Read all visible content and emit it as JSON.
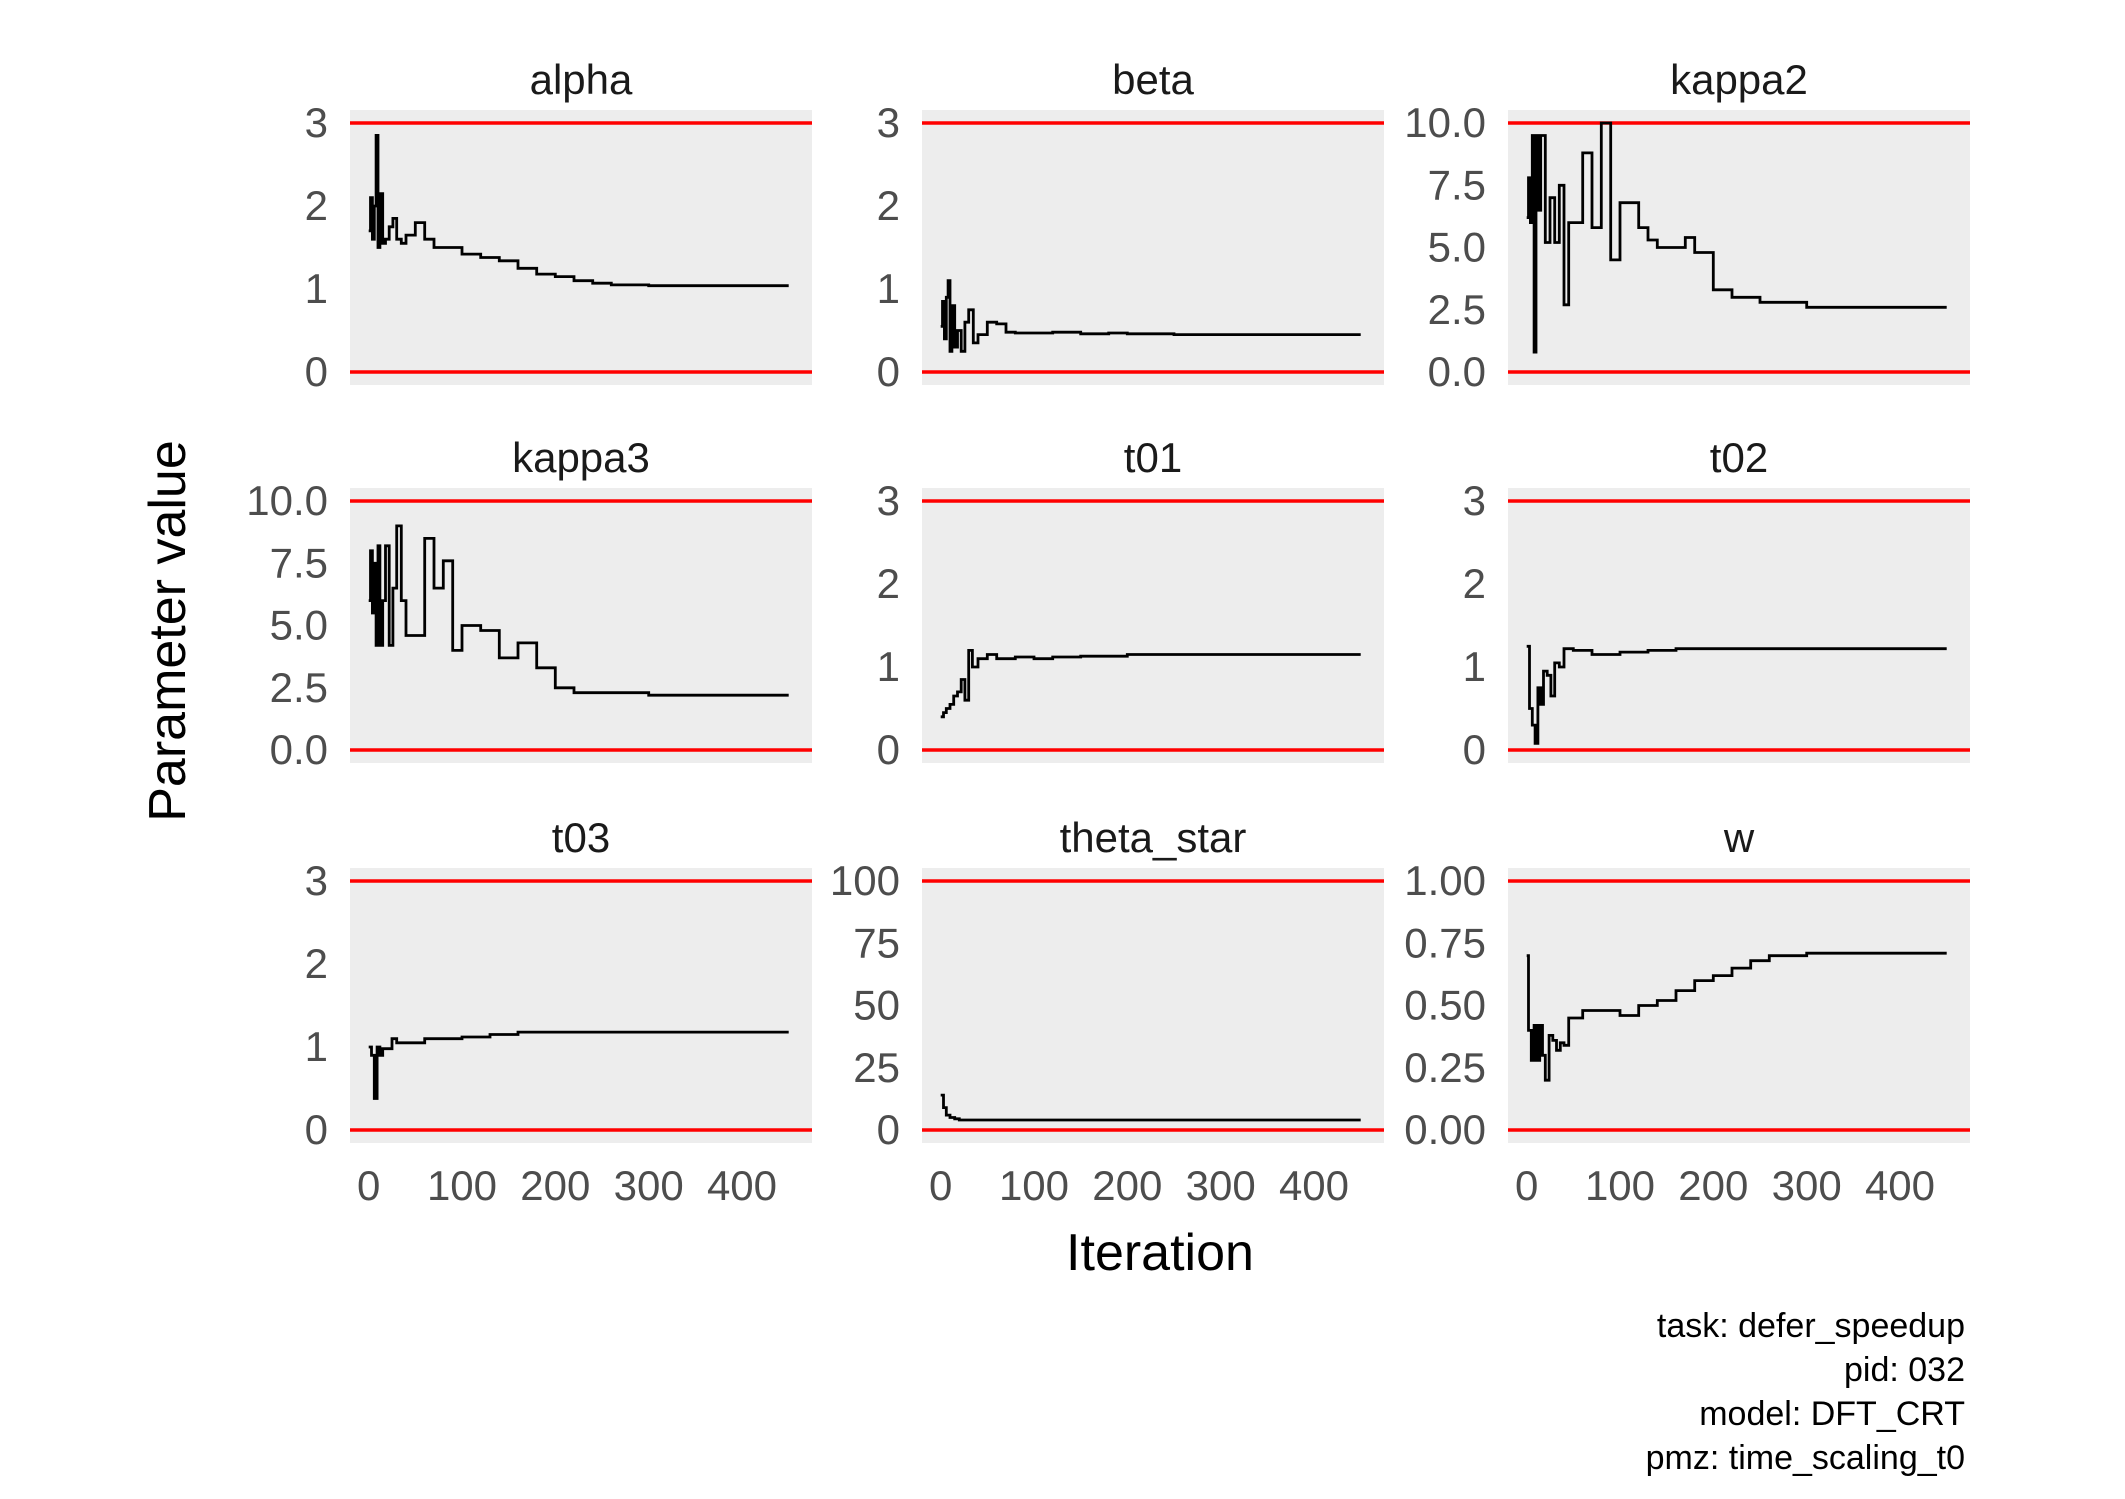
{
  "chart_data": {
    "type": "line",
    "layout": "facet-grid 3x3",
    "xlabel": "Iteration",
    "ylabel": "Parameter value",
    "x_ticks": [
      0,
      100,
      200,
      300,
      400
    ],
    "xlim": [
      -20,
      475
    ],
    "grid": false,
    "bound_line_color": "#ff0000",
    "trace_color": "#000000",
    "panel_background": "#ededed",
    "caption": [
      "task: defer_speedup",
      "pid: 032",
      "model: DFT_CRT",
      "pmz: time_scaling_t0"
    ],
    "panels": [
      {
        "title": "alpha",
        "ylim": [
          0,
          3
        ],
        "yticks": [
          0,
          1,
          2,
          3
        ],
        "ytick_labels": [
          "0",
          "1",
          "2",
          "3"
        ],
        "bounds": [
          0,
          3
        ],
        "x": [
          0,
          2,
          4,
          6,
          8,
          10,
          12,
          15,
          18,
          22,
          26,
          30,
          35,
          40,
          50,
          60,
          70,
          80,
          100,
          120,
          140,
          160,
          180,
          200,
          220,
          240,
          260,
          300,
          350,
          400,
          450
        ],
        "y": [
          1.7,
          2.1,
          1.6,
          2.0,
          2.85,
          1.5,
          2.15,
          1.55,
          1.6,
          1.75,
          1.85,
          1.6,
          1.55,
          1.65,
          1.8,
          1.6,
          1.5,
          1.5,
          1.42,
          1.38,
          1.34,
          1.25,
          1.18,
          1.15,
          1.1,
          1.07,
          1.05,
          1.04,
          1.04,
          1.04,
          1.04
        ]
      },
      {
        "title": "beta",
        "ylim": [
          0,
          3
        ],
        "yticks": [
          0,
          1,
          2,
          3
        ],
        "ytick_labels": [
          "0",
          "1",
          "2",
          "3"
        ],
        "bounds": [
          0,
          3
        ],
        "x": [
          0,
          2,
          4,
          6,
          8,
          10,
          12,
          15,
          18,
          22,
          26,
          30,
          35,
          40,
          50,
          60,
          70,
          80,
          100,
          120,
          150,
          180,
          200,
          250,
          300,
          350,
          400,
          450
        ],
        "y": [
          0.55,
          0.85,
          0.4,
          0.9,
          1.1,
          0.25,
          0.8,
          0.3,
          0.5,
          0.25,
          0.6,
          0.75,
          0.35,
          0.45,
          0.6,
          0.58,
          0.48,
          0.47,
          0.47,
          0.48,
          0.46,
          0.47,
          0.46,
          0.45,
          0.45,
          0.45,
          0.45,
          0.45
        ]
      },
      {
        "title": "kappa2",
        "ylim": [
          0,
          10
        ],
        "yticks": [
          0,
          2.5,
          5,
          7.5,
          10
        ],
        "ytick_labels": [
          "0.0",
          "2.5",
          "5.0",
          "7.5",
          "10.0"
        ],
        "bounds": [
          0,
          10
        ],
        "x": [
          0,
          2,
          4,
          6,
          8,
          10,
          12,
          15,
          20,
          25,
          30,
          35,
          40,
          45,
          50,
          60,
          70,
          80,
          90,
          100,
          110,
          120,
          130,
          140,
          150,
          160,
          170,
          180,
          200,
          220,
          250,
          300,
          350,
          400,
          450
        ],
        "y": [
          6.2,
          7.8,
          6.0,
          9.5,
          0.8,
          9.5,
          6.5,
          9.5,
          5.2,
          7.0,
          5.2,
          7.5,
          2.7,
          6.0,
          6.0,
          8.8,
          5.8,
          10.0,
          4.5,
          6.8,
          6.8,
          5.8,
          5.3,
          5.0,
          5.0,
          5.0,
          5.4,
          4.8,
          3.3,
          3.0,
          2.8,
          2.6,
          2.6,
          2.6,
          2.6
        ]
      },
      {
        "title": "kappa3",
        "ylim": [
          0,
          10
        ],
        "yticks": [
          0,
          2.5,
          5,
          7.5,
          10
        ],
        "ytick_labels": [
          "0.0",
          "2.5",
          "5.0",
          "7.5",
          "10.0"
        ],
        "bounds": [
          0,
          10
        ],
        "x": [
          0,
          2,
          4,
          6,
          8,
          10,
          12,
          15,
          18,
          22,
          26,
          30,
          35,
          40,
          50,
          60,
          70,
          80,
          90,
          100,
          120,
          140,
          160,
          180,
          200,
          220,
          250,
          300,
          350,
          400,
          450
        ],
        "y": [
          6.0,
          8.0,
          5.5,
          7.5,
          4.2,
          8.2,
          4.2,
          6.0,
          8.2,
          4.2,
          6.5,
          9.0,
          6.0,
          4.6,
          4.6,
          8.5,
          6.5,
          7.6,
          4.0,
          5.0,
          4.8,
          3.7,
          4.3,
          3.3,
          2.5,
          2.3,
          2.3,
          2.2,
          2.2,
          2.2,
          2.2
        ]
      },
      {
        "title": "t01",
        "ylim": [
          0,
          3
        ],
        "yticks": [
          0,
          1,
          2,
          3
        ],
        "ytick_labels": [
          "0",
          "1",
          "2",
          "3"
        ],
        "bounds": [
          0,
          3
        ],
        "x": [
          0,
          3,
          6,
          10,
          14,
          18,
          22,
          26,
          30,
          34,
          40,
          50,
          60,
          80,
          100,
          120,
          150,
          200,
          250,
          300,
          350,
          400,
          450
        ],
        "y": [
          0.4,
          0.45,
          0.5,
          0.55,
          0.65,
          0.7,
          0.85,
          0.6,
          1.2,
          1.0,
          1.1,
          1.15,
          1.1,
          1.12,
          1.1,
          1.12,
          1.13,
          1.15,
          1.15,
          1.15,
          1.15,
          1.15,
          1.15
        ]
      },
      {
        "title": "t02",
        "ylim": [
          0,
          3
        ],
        "yticks": [
          0,
          1,
          2,
          3
        ],
        "ytick_labels": [
          "0",
          "1",
          "2",
          "3"
        ],
        "bounds": [
          0,
          3
        ],
        "x": [
          0,
          3,
          6,
          9,
          12,
          15,
          18,
          22,
          26,
          30,
          35,
          40,
          50,
          70,
          100,
          130,
          160,
          200,
          250,
          300,
          350,
          400,
          450
        ],
        "y": [
          1.25,
          0.5,
          0.3,
          0.08,
          0.75,
          0.55,
          0.95,
          0.9,
          0.65,
          1.05,
          1.0,
          1.22,
          1.2,
          1.15,
          1.18,
          1.2,
          1.22,
          1.22,
          1.22,
          1.22,
          1.22,
          1.22,
          1.22
        ]
      },
      {
        "title": "t03",
        "ylim": [
          0,
          3
        ],
        "yticks": [
          0,
          1,
          2,
          3
        ],
        "ytick_labels": [
          "0",
          "1",
          "2",
          "3"
        ],
        "bounds": [
          0,
          3
        ],
        "x": [
          0,
          3,
          6,
          9,
          12,
          15,
          20,
          25,
          30,
          35,
          40,
          60,
          80,
          100,
          130,
          160,
          200,
          250,
          300,
          350,
          400,
          450
        ],
        "y": [
          1.0,
          0.9,
          0.38,
          1.0,
          0.9,
          0.98,
          0.98,
          1.1,
          1.05,
          1.05,
          1.05,
          1.1,
          1.1,
          1.12,
          1.15,
          1.18,
          1.18,
          1.18,
          1.18,
          1.18,
          1.18,
          1.18
        ]
      },
      {
        "title": "theta_star",
        "ylim": [
          0,
          100
        ],
        "yticks": [
          0,
          25,
          50,
          75,
          100
        ],
        "ytick_labels": [
          "0",
          "25",
          "50",
          "75",
          "100"
        ],
        "bounds": [
          0,
          100
        ],
        "x": [
          0,
          3,
          6,
          10,
          15,
          20,
          30,
          50,
          100,
          200,
          300,
          400,
          450
        ],
        "y": [
          14,
          9,
          6,
          5,
          4.5,
          4,
          4,
          4,
          4,
          4,
          4,
          4,
          4
        ]
      },
      {
        "title": "w",
        "ylim": [
          0,
          1
        ],
        "yticks": [
          0,
          0.25,
          0.5,
          0.75,
          1
        ],
        "ytick_labels": [
          "0.00",
          "0.25",
          "0.50",
          "0.75",
          "1.00"
        ],
        "bounds": [
          0,
          1
        ],
        "x": [
          0,
          2,
          5,
          8,
          11,
          14,
          17,
          20,
          24,
          28,
          32,
          36,
          40,
          45,
          50,
          60,
          70,
          80,
          100,
          120,
          140,
          160,
          180,
          200,
          220,
          240,
          260,
          300,
          350,
          400,
          450
        ],
        "y": [
          0.7,
          0.4,
          0.28,
          0.42,
          0.28,
          0.42,
          0.3,
          0.2,
          0.38,
          0.36,
          0.32,
          0.35,
          0.34,
          0.45,
          0.45,
          0.48,
          0.48,
          0.48,
          0.46,
          0.5,
          0.52,
          0.56,
          0.6,
          0.62,
          0.65,
          0.68,
          0.7,
          0.71,
          0.71,
          0.71,
          0.71
        ]
      }
    ]
  }
}
